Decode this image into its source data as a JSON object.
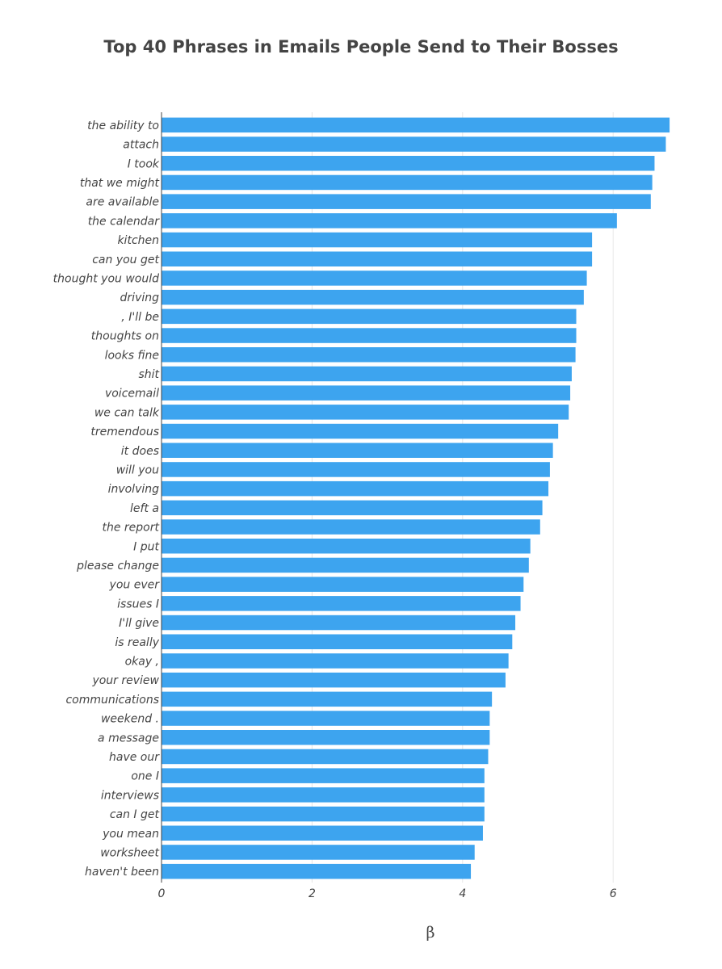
{
  "chart_data": {
    "type": "bar",
    "orientation": "horizontal",
    "title": "Top 40 Phrases in Emails People Send to Their Bosses",
    "xlabel": "β",
    "ylabel": "",
    "xlim": [
      0,
      6.8
    ],
    "xticks": [
      "0",
      "2",
      "4",
      "6"
    ],
    "grid": true,
    "bar_color": "#3da4ef",
    "categories": [
      "the ability to",
      "attach",
      "I took",
      "that we might",
      "are available",
      "the calendar",
      "kitchen",
      "can you get",
      "thought you would",
      "driving",
      ", I'll be",
      "thoughts on",
      "looks fine",
      "shit",
      "voicemail",
      "we can talk",
      "tremendous",
      "it does",
      "will you",
      "involving",
      "left a",
      "the report",
      "I put",
      "please change",
      "you ever",
      "issues I",
      "I'll give",
      "is really",
      "okay ,",
      "your review",
      "communications",
      "weekend .",
      "a message",
      "have our",
      "one I",
      "interviews",
      "can I get",
      "you mean",
      "worksheet",
      "haven't been"
    ],
    "values": [
      6.75,
      6.7,
      6.55,
      6.52,
      6.5,
      6.05,
      5.72,
      5.72,
      5.65,
      5.61,
      5.51,
      5.51,
      5.5,
      5.45,
      5.43,
      5.41,
      5.27,
      5.2,
      5.16,
      5.14,
      5.06,
      5.03,
      4.9,
      4.88,
      4.81,
      4.77,
      4.7,
      4.66,
      4.61,
      4.57,
      4.39,
      4.36,
      4.36,
      4.34,
      4.29,
      4.29,
      4.29,
      4.27,
      4.16,
      4.11
    ]
  }
}
